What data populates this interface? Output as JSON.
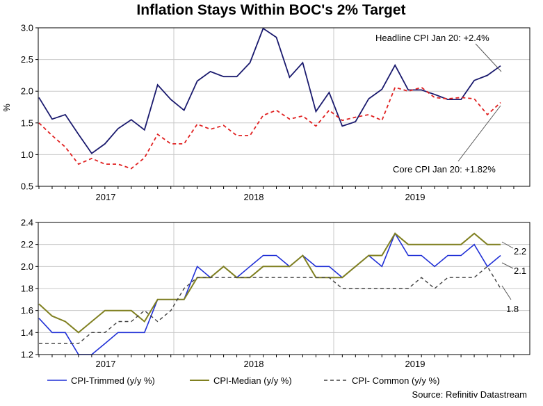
{
  "title": "Inflation Stays Within BOC's 2% Target",
  "source": "Source: Refinitiv Datastream",
  "colors": {
    "headline": "#1a1a6e",
    "core": "#e02020",
    "trimmed": "#1f2fd6",
    "median": "#808020",
    "common": "#404040",
    "grid": "#c8c8c8"
  },
  "chart_data": [
    {
      "type": "line",
      "title": "Inflation Stays Within BOC's 2% Target",
      "ylabel": "%",
      "xlabel": "",
      "ylim": [
        0.5,
        3.0
      ],
      "yticks": [
        "3.0",
        "2.5",
        "2.0",
        "1.5",
        "1.0",
        "0.5"
      ],
      "ytick_values": [
        3.0,
        2.5,
        2.0,
        1.5,
        1.0,
        0.5
      ],
      "years": [
        "2017",
        "2018",
        "2019"
      ],
      "x_start": "Sep 2016",
      "series": [
        {
          "name": "Headline CPI",
          "style": "solid",
          "values": [
            1.9,
            1.56,
            1.63,
            1.32,
            1.02,
            1.17,
            1.41,
            1.55,
            1.39,
            2.1,
            1.87,
            1.7,
            2.16,
            2.31,
            2.23,
            2.23,
            2.45,
            2.99,
            2.85,
            2.22,
            2.45,
            1.68,
            1.98,
            1.45,
            1.52,
            1.88,
            2.03,
            2.41,
            2.02,
            2.02,
            1.95,
            1.87,
            1.87,
            2.17,
            2.25,
            2.4
          ]
        },
        {
          "name": "Core CPI",
          "style": "dashed",
          "values": [
            1.5,
            1.3,
            1.12,
            0.85,
            0.94,
            0.85,
            0.85,
            0.78,
            0.95,
            1.32,
            1.17,
            1.17,
            1.48,
            1.4,
            1.46,
            1.3,
            1.3,
            1.62,
            1.7,
            1.56,
            1.61,
            1.45,
            1.7,
            1.54,
            1.59,
            1.63,
            1.54,
            2.06,
            2.0,
            2.06,
            1.9,
            1.88,
            1.9,
            1.88,
            1.63,
            1.82
          ]
        }
      ],
      "annotations": [
        "Headline CPI Jan 20: +2.4%",
        "Core CPI Jan 20: +1.82%"
      ]
    },
    {
      "type": "line",
      "ylim": [
        1.2,
        2.4
      ],
      "yticks": [
        "2.4",
        "2.2",
        "2.0",
        "1.8",
        "1.6",
        "1.4",
        "1.2"
      ],
      "ytick_values": [
        2.4,
        2.2,
        2.0,
        1.8,
        1.6,
        1.4,
        1.2
      ],
      "years": [
        "2017",
        "2018",
        "2019"
      ],
      "series": [
        {
          "name": "CPI-Trimmed (y/y %)",
          "style": "solid",
          "values": [
            1.53,
            1.4,
            1.4,
            1.2,
            1.2,
            1.3,
            1.4,
            1.4,
            1.4,
            1.7,
            1.7,
            1.7,
            2.0,
            1.9,
            2.0,
            1.9,
            2.0,
            2.1,
            2.1,
            2.0,
            2.1,
            2.0,
            2.0,
            1.9,
            2.0,
            2.1,
            2.0,
            2.3,
            2.1,
            2.1,
            2.0,
            2.1,
            2.1,
            2.2,
            2.0,
            2.1
          ]
        },
        {
          "name": "CPI-Median (y/y %)",
          "style": "solid",
          "values": [
            1.66,
            1.55,
            1.5,
            1.4,
            1.5,
            1.6,
            1.6,
            1.6,
            1.5,
            1.7,
            1.7,
            1.7,
            1.9,
            1.9,
            2.0,
            1.9,
            1.9,
            2.0,
            2.0,
            2.0,
            2.1,
            1.9,
            1.9,
            1.9,
            2.0,
            2.1,
            2.1,
            2.3,
            2.2,
            2.2,
            2.2,
            2.2,
            2.2,
            2.3,
            2.2,
            2.2
          ]
        },
        {
          "name": "CPI- Common (y/y %)",
          "style": "dashed",
          "values": [
            1.3,
            1.3,
            1.3,
            1.3,
            1.4,
            1.4,
            1.5,
            1.5,
            1.6,
            1.5,
            1.6,
            1.8,
            1.9,
            1.9,
            1.9,
            1.9,
            1.9,
            1.9,
            1.9,
            1.9,
            1.9,
            1.9,
            1.9,
            1.8,
            1.8,
            1.8,
            1.8,
            1.8,
            1.8,
            1.9,
            1.8,
            1.9,
            1.9,
            1.9,
            2.0,
            1.8
          ]
        }
      ],
      "end_labels": [
        "2.2",
        "2.1",
        "1.8"
      ]
    }
  ]
}
